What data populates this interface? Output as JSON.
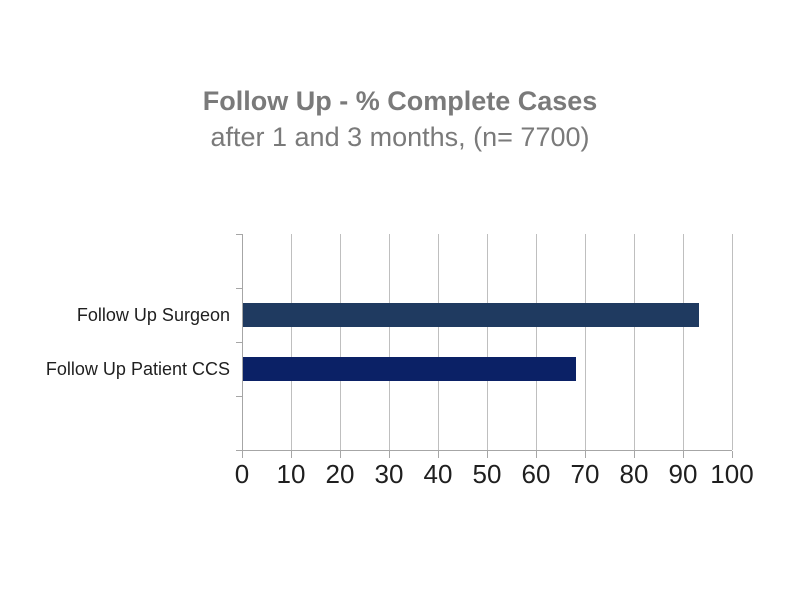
{
  "chart_data": {
    "type": "bar",
    "orientation": "horizontal",
    "title": "Follow Up - % Complete Cases",
    "subtitle": "after 1 and 3 months, (n= 7700)",
    "categories": [
      "Follow Up Surgeon",
      "Follow Up Patient CCS"
    ],
    "values": [
      93,
      68
    ],
    "xlim": [
      0,
      100
    ],
    "xticks": [
      0,
      10,
      20,
      30,
      40,
      50,
      60,
      70,
      80,
      90,
      100
    ],
    "series_colors": [
      "#1f3a60",
      "#0b2166"
    ],
    "grid": true,
    "legend": false
  },
  "colors": {
    "background": "#ffffff",
    "title_text": "#7a7a7a",
    "axis_line": "#a6a6a6",
    "gridline": "#bfbfbf",
    "label_text": "#1f1f1f"
  }
}
